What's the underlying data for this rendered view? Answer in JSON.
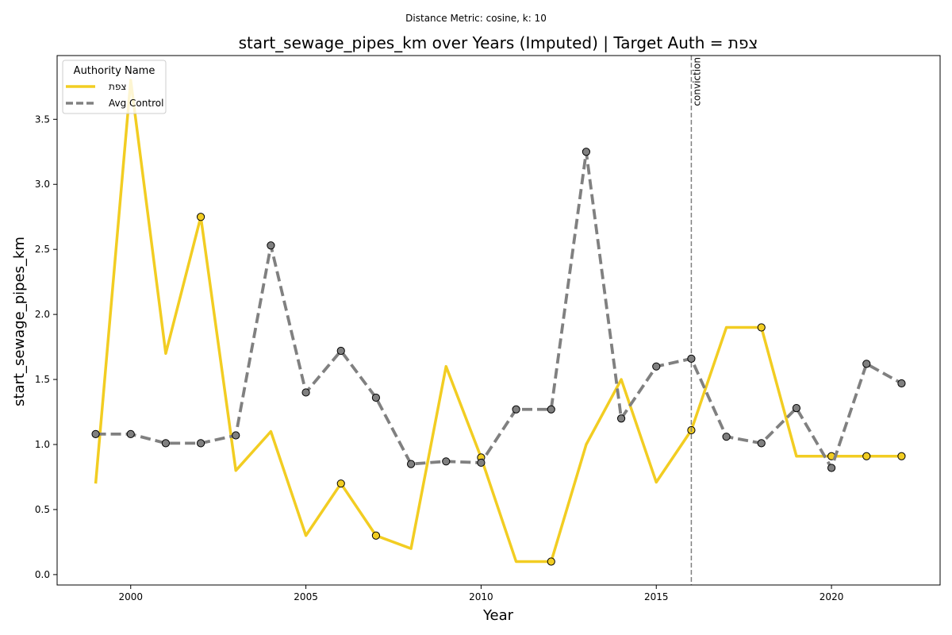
{
  "chart_data": {
    "type": "line",
    "suptitle": "Distance Metric: cosine, k: 10",
    "title": "start_sewage_pipes_km over Years (Imputed) | Target Auth = צפת",
    "xlabel": "Year",
    "ylabel": "start_sewage_pipes_km",
    "xlim": [
      1997.9,
      2023.1
    ],
    "ylim": [
      -0.08,
      3.99
    ],
    "x_ticks": [
      2000,
      2005,
      2010,
      2015,
      2020
    ],
    "x_tick_labels": [
      "2000",
      "2005",
      "2010",
      "2015",
      "2020"
    ],
    "y_ticks": [
      0.0,
      0.5,
      1.0,
      1.5,
      2.0,
      2.5,
      3.0,
      3.5
    ],
    "y_tick_labels": [
      "0.0",
      "0.5",
      "1.0",
      "1.5",
      "2.0",
      "2.5",
      "3.0",
      "3.5"
    ],
    "grid": false,
    "legend": {
      "title": "Authority Name",
      "placement": "top-left"
    },
    "x": [
      1999,
      2000,
      2001,
      2002,
      2003,
      2004,
      2005,
      2006,
      2007,
      2008,
      2009,
      2010,
      2011,
      2012,
      2013,
      2014,
      2015,
      2016,
      2017,
      2018,
      2019,
      2020,
      2021,
      2022
    ],
    "series": [
      {
        "name": "צפת",
        "color": "#f2cd22",
        "style": "solid",
        "values": [
          0.7,
          3.8,
          1.7,
          2.75,
          0.8,
          1.1,
          0.3,
          0.7,
          0.3,
          0.2,
          1.6,
          0.9,
          0.1,
          0.1,
          1.0,
          1.5,
          0.71,
          1.11,
          1.9,
          1.9,
          0.91,
          0.91,
          0.91,
          0.91
        ],
        "markers": [
          false,
          false,
          false,
          true,
          false,
          false,
          false,
          true,
          true,
          false,
          false,
          true,
          false,
          true,
          false,
          false,
          false,
          true,
          false,
          true,
          false,
          true,
          true,
          true
        ]
      },
      {
        "name": "Avg Control",
        "color": "#808080",
        "style": "dashed",
        "values": [
          1.08,
          1.08,
          1.01,
          1.01,
          1.07,
          2.53,
          1.4,
          1.72,
          1.36,
          0.85,
          0.87,
          0.86,
          1.27,
          1.27,
          3.25,
          1.2,
          1.6,
          1.66,
          1.06,
          1.01,
          1.28,
          0.82,
          1.62,
          1.47
        ],
        "markers": [
          true,
          true,
          true,
          true,
          true,
          true,
          true,
          true,
          true,
          true,
          true,
          true,
          true,
          true,
          true,
          true,
          true,
          true,
          true,
          true,
          true,
          true,
          true,
          true
        ]
      }
    ],
    "annotations": [
      {
        "type": "vline",
        "x": 2016,
        "label": "conviction",
        "color": "#808080",
        "style": "dashed"
      }
    ]
  }
}
